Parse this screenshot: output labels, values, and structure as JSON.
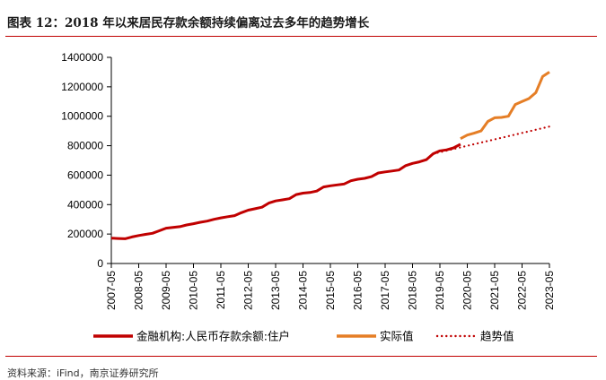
{
  "figure": {
    "title": "图表 12：2018 年以来居民存款余额持续偏离过去多年的趋势增长",
    "source": "资料来源：iFind，南京证券研究所"
  },
  "chart_data": {
    "type": "line",
    "ylim": [
      0,
      1400000
    ],
    "yticks": [
      0,
      200000,
      400000,
      600000,
      800000,
      1000000,
      1200000,
      1400000
    ],
    "ytick_labels": [
      "0",
      "200000",
      "400000",
      "600000",
      "800000",
      "1000000",
      "1200000",
      "1400000"
    ],
    "x_range": [
      "2007-05",
      "2023-05"
    ],
    "xtick_labels": [
      "2007-05",
      "2008-05",
      "2009-05",
      "2010-05",
      "2011-05",
      "2012-05",
      "2013-05",
      "2014-05",
      "2015-05",
      "2016-05",
      "2017-05",
      "2018-05",
      "2019-05",
      "2020-05",
      "2021-05",
      "2022-05",
      "2023-05"
    ],
    "legend_position": "bottom",
    "grid": false,
    "series": [
      {
        "name": "金融机构:人民币存款余额:住户",
        "color": "#c00000",
        "style": "solid",
        "x": [
          "2007-05",
          "2007-08",
          "2007-11",
          "2008-02",
          "2008-05",
          "2008-08",
          "2008-11",
          "2009-02",
          "2009-05",
          "2009-08",
          "2009-11",
          "2010-02",
          "2010-05",
          "2010-08",
          "2010-11",
          "2011-02",
          "2011-05",
          "2011-08",
          "2011-11",
          "2012-02",
          "2012-05",
          "2012-08",
          "2012-11",
          "2013-02",
          "2013-05",
          "2013-08",
          "2013-11",
          "2014-02",
          "2014-05",
          "2014-08",
          "2014-11",
          "2015-02",
          "2015-05",
          "2015-08",
          "2015-11",
          "2016-02",
          "2016-05",
          "2016-08",
          "2016-11",
          "2017-02",
          "2017-05",
          "2017-08",
          "2017-11",
          "2018-02",
          "2018-05",
          "2018-08",
          "2018-11",
          "2019-02",
          "2019-05",
          "2019-08",
          "2019-11",
          "2020-02"
        ],
        "values": [
          172000,
          170000,
          168000,
          180000,
          190000,
          198000,
          205000,
          222000,
          240000,
          245000,
          250000,
          262000,
          270000,
          280000,
          288000,
          300000,
          310000,
          318000,
          325000,
          345000,
          362000,
          372000,
          382000,
          410000,
          425000,
          432000,
          440000,
          468000,
          478000,
          482000,
          492000,
          520000,
          528000,
          534000,
          540000,
          562000,
          572000,
          578000,
          590000,
          615000,
          622000,
          628000,
          635000,
          665000,
          680000,
          690000,
          705000,
          745000,
          765000,
          772000,
          785000,
          810000
        ]
      },
      {
        "name": "实际值",
        "color": "#e57e26",
        "style": "solid",
        "x": [
          "2020-02",
          "2020-05",
          "2020-08",
          "2020-11",
          "2021-02",
          "2021-05",
          "2021-08",
          "2021-11",
          "2022-02",
          "2022-05",
          "2022-08",
          "2022-11",
          "2023-02",
          "2023-05"
        ],
        "values": [
          848000,
          872000,
          885000,
          900000,
          965000,
          990000,
          992000,
          1000000,
          1080000,
          1100000,
          1120000,
          1160000,
          1270000,
          1300000
        ]
      },
      {
        "name": "趋势值",
        "color": "#c00000",
        "style": "dotted",
        "x": [
          "2019-02",
          "2023-05"
        ],
        "values": [
          745000,
          930000
        ]
      }
    ]
  }
}
